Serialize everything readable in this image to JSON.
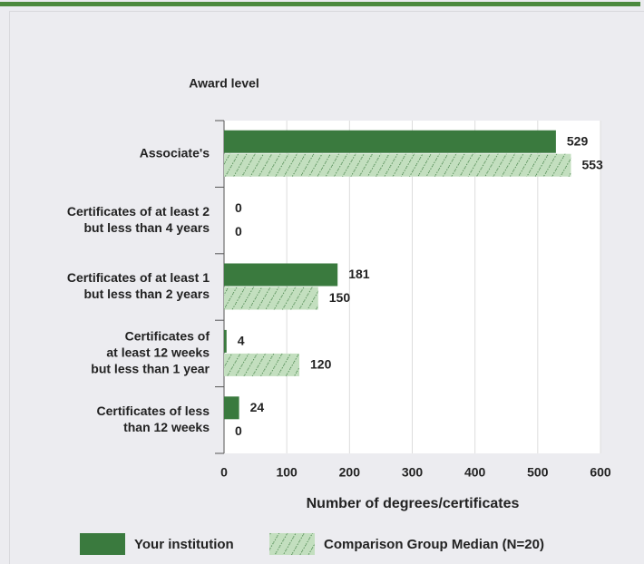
{
  "chart_data": {
    "type": "hbar",
    "title": "Award level",
    "xlabel": "Number of degrees/certificates",
    "categories": [
      [
        "Associate's"
      ],
      [
        "Certificates of at least 2",
        "but less than 4 years"
      ],
      [
        "Certificates of at least 1",
        "but less than 2 years"
      ],
      [
        "Certificates of",
        "at least 12 weeks",
        "but less than 1 year"
      ],
      [
        "Certificates of less",
        "than 12 weeks"
      ]
    ],
    "series": [
      {
        "name": "Your institution",
        "color": "#3a7a3e",
        "values": [
          529,
          0,
          181,
          4,
          24
        ]
      },
      {
        "name": "Comparison Group Median (N=20)",
        "color": "#c3dfbf",
        "values": [
          553,
          0,
          150,
          120,
          0
        ]
      }
    ],
    "xlim": [
      0,
      600
    ],
    "xticks": [
      0,
      100,
      200,
      300,
      400,
      500,
      600
    ],
    "grid": true
  }
}
